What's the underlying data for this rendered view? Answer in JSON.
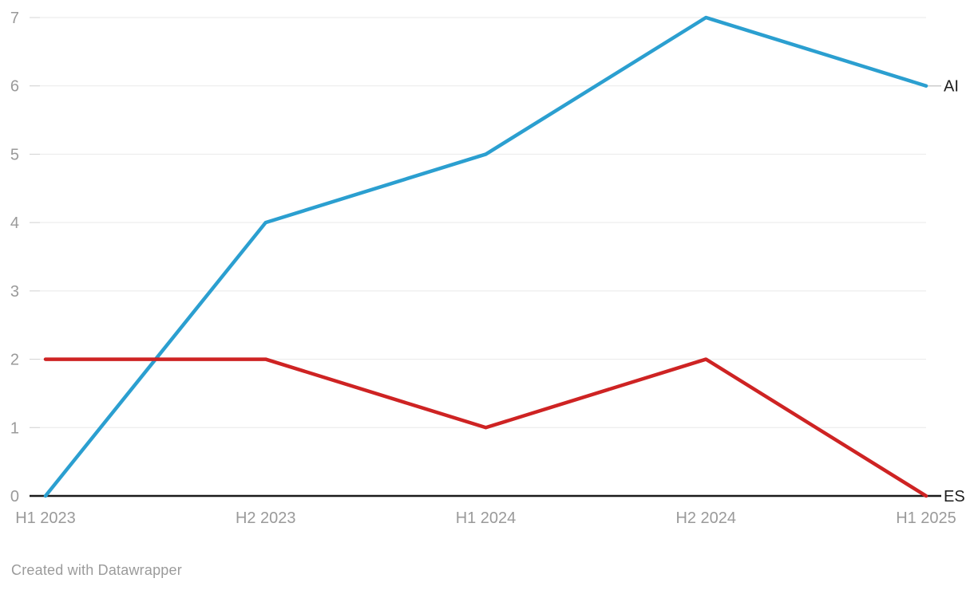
{
  "chart_data": {
    "type": "line",
    "title": "",
    "xlabel": "",
    "ylabel": "",
    "categories": [
      "H1 2023",
      "H2 2023",
      "H1 2024",
      "H2 2024",
      "H1 2025"
    ],
    "series": [
      {
        "name": "AI",
        "values": [
          0,
          4,
          5,
          7,
          6
        ],
        "color": "#2b9fd0"
      },
      {
        "name": "ES",
        "values": [
          2,
          2,
          1,
          2,
          0
        ],
        "color": "#ce2323"
      }
    ],
    "ylim": [
      0,
      7
    ],
    "yticks": [
      0,
      1,
      2,
      3,
      4,
      5,
      6,
      7
    ],
    "grid": true,
    "legend_position": "end-of-line-labels"
  },
  "colors": {
    "gridline": "#e9e9e9",
    "tick_dash": "#d4d4d4",
    "axis_baseline": "#1a1a1a",
    "tick_label": "#9a9a9a",
    "x_label": "#9a9a9a",
    "series_label": "#1d1d1d",
    "connector": "#cccccc",
    "background": "#ffffff"
  },
  "footer": {
    "text": "Created with Datawrapper"
  }
}
